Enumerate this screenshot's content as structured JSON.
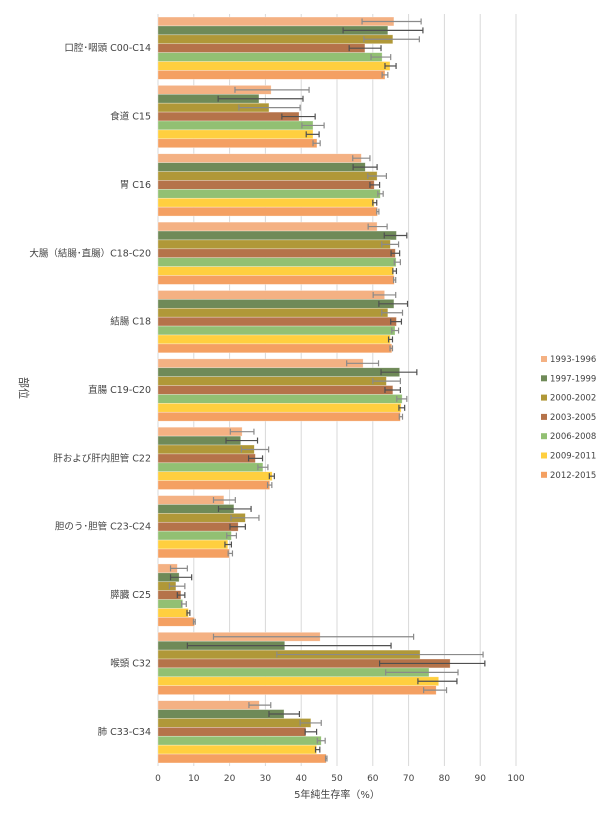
{
  "chart_data": {
    "type": "bar",
    "orientation": "horizontal",
    "title": "",
    "xlabel": "5年純生存率（%）",
    "ylabel": "部位",
    "xlim": [
      0,
      100
    ],
    "xticks": [
      0,
      10,
      20,
      30,
      40,
      50,
      60,
      70,
      80,
      90,
      100
    ],
    "grid": true,
    "legend_position": "right",
    "error_bars": true,
    "categories": [
      "口腔･咽頭 C00-C14",
      "食道 C15",
      "胃 C16",
      "大腸（結腸･直腸）C18-C20",
      "結腸 C18",
      "直腸 C19-C20",
      "肝および肝内胆管 C22",
      "胆のう･胆管 C23-C24",
      "膵臓 C25",
      "喉頭 C32",
      "肺 C33-C34"
    ],
    "series": [
      {
        "name": "1993-1996",
        "color": "#f4b183",
        "values": [
          65.9,
          31.6,
          56.8,
          61.2,
          63.3,
          57.3,
          23.5,
          18.4,
          5.4,
          45.3,
          28.3
        ],
        "lower": [
          57,
          21.5,
          54.4,
          58.7,
          60.1,
          52.7,
          20.2,
          15.5,
          3.5,
          15.5,
          25.4
        ],
        "upper": [
          73.5,
          42.2,
          59.2,
          64,
          66.4,
          61.6,
          26.8,
          21.6,
          8.2,
          71.4,
          31.5
        ]
      },
      {
        "name": "1997-1999",
        "color": "#6f8a58",
        "values": [
          64.2,
          28.2,
          57.9,
          66.6,
          65.9,
          67.5,
          23.1,
          21.2,
          5.9,
          35.4,
          35.2
        ],
        "lower": [
          51.7,
          16.8,
          54.5,
          63.2,
          61.7,
          62.3,
          19,
          16.9,
          3.5,
          8.2,
          31
        ],
        "upper": [
          74,
          40.5,
          61.2,
          69.5,
          69.7,
          72.3,
          27.8,
          26,
          9.4,
          65.1,
          39.5
        ]
      },
      {
        "name": "2000-2002",
        "color": "#b09838",
        "values": [
          65.6,
          31,
          61.2,
          64.9,
          64.2,
          63.8,
          26.9,
          24.4,
          5,
          73.2,
          42.7
        ],
        "lower": [
          57.5,
          22.6,
          58.6,
          62.5,
          62.5,
          60,
          23.3,
          20.4,
          3.2,
          33.2,
          39.7
        ],
        "upper": [
          73,
          39.7,
          63.8,
          67.2,
          68.3,
          67.7,
          30.9,
          28.2,
          7.5,
          90.8,
          45.6
        ]
      },
      {
        "name": "2003-2005",
        "color": "#b5734a",
        "values": [
          57.8,
          39.4,
          60.4,
          66.3,
          66.6,
          65.6,
          27.2,
          22.4,
          6.4,
          81.6,
          41.3
        ],
        "lower": [
          53.4,
          34.6,
          59.2,
          65.1,
          65,
          63.4,
          25.3,
          20.1,
          5.4,
          61.9,
          41.1
        ],
        "upper": [
          62.3,
          43.9,
          61.9,
          67.5,
          68,
          67.7,
          29.2,
          24.4,
          7.5,
          91.3,
          44.3
        ]
      },
      {
        "name": "2006-2008",
        "color": "#92c073",
        "values": [
          62.6,
          43.3,
          62.1,
          66.5,
          66.2,
          68.2,
          29.3,
          20.5,
          6.9,
          75.7,
          45.6
        ],
        "lower": [
          59.5,
          40.2,
          61.4,
          66,
          65.3,
          66.7,
          27.9,
          19.2,
          6.6,
          63.6,
          44.5
        ],
        "upper": [
          65,
          46.4,
          62.9,
          67.7,
          67.2,
          69.5,
          30.7,
          21.9,
          7.9,
          83.8,
          46.7
        ]
      },
      {
        "name": "2009-2011",
        "color": "#ffcf3f",
        "values": [
          64.8,
          43.3,
          60.4,
          65.8,
          64.9,
          67.9,
          31.9,
          19.5,
          8.5,
          78.4,
          44.3
        ],
        "lower": [
          63.4,
          41.4,
          60,
          65.6,
          64.4,
          67.3,
          31.1,
          18.7,
          8.1,
          72.6,
          44
        ],
        "upper": [
          66.5,
          45,
          61.1,
          66.6,
          65.5,
          68.9,
          32.5,
          20.5,
          8.9,
          83.5,
          45.2
        ]
      },
      {
        "name": "2012-2015",
        "color": "#f4a062",
        "values": [
          63.4,
          44.4,
          61.3,
          66,
          65.3,
          67.7,
          31.2,
          19.9,
          10.2,
          77.7,
          47
        ],
        "lower": [
          62.6,
          43.3,
          61.1,
          65.8,
          64.8,
          67.4,
          30.6,
          19.6,
          9.9,
          74.2,
          46.8
        ],
        "upper": [
          64.2,
          45.3,
          61.7,
          66.4,
          65.5,
          68.3,
          31.8,
          20.8,
          10.4,
          80.6,
          47.2
        ]
      }
    ]
  }
}
